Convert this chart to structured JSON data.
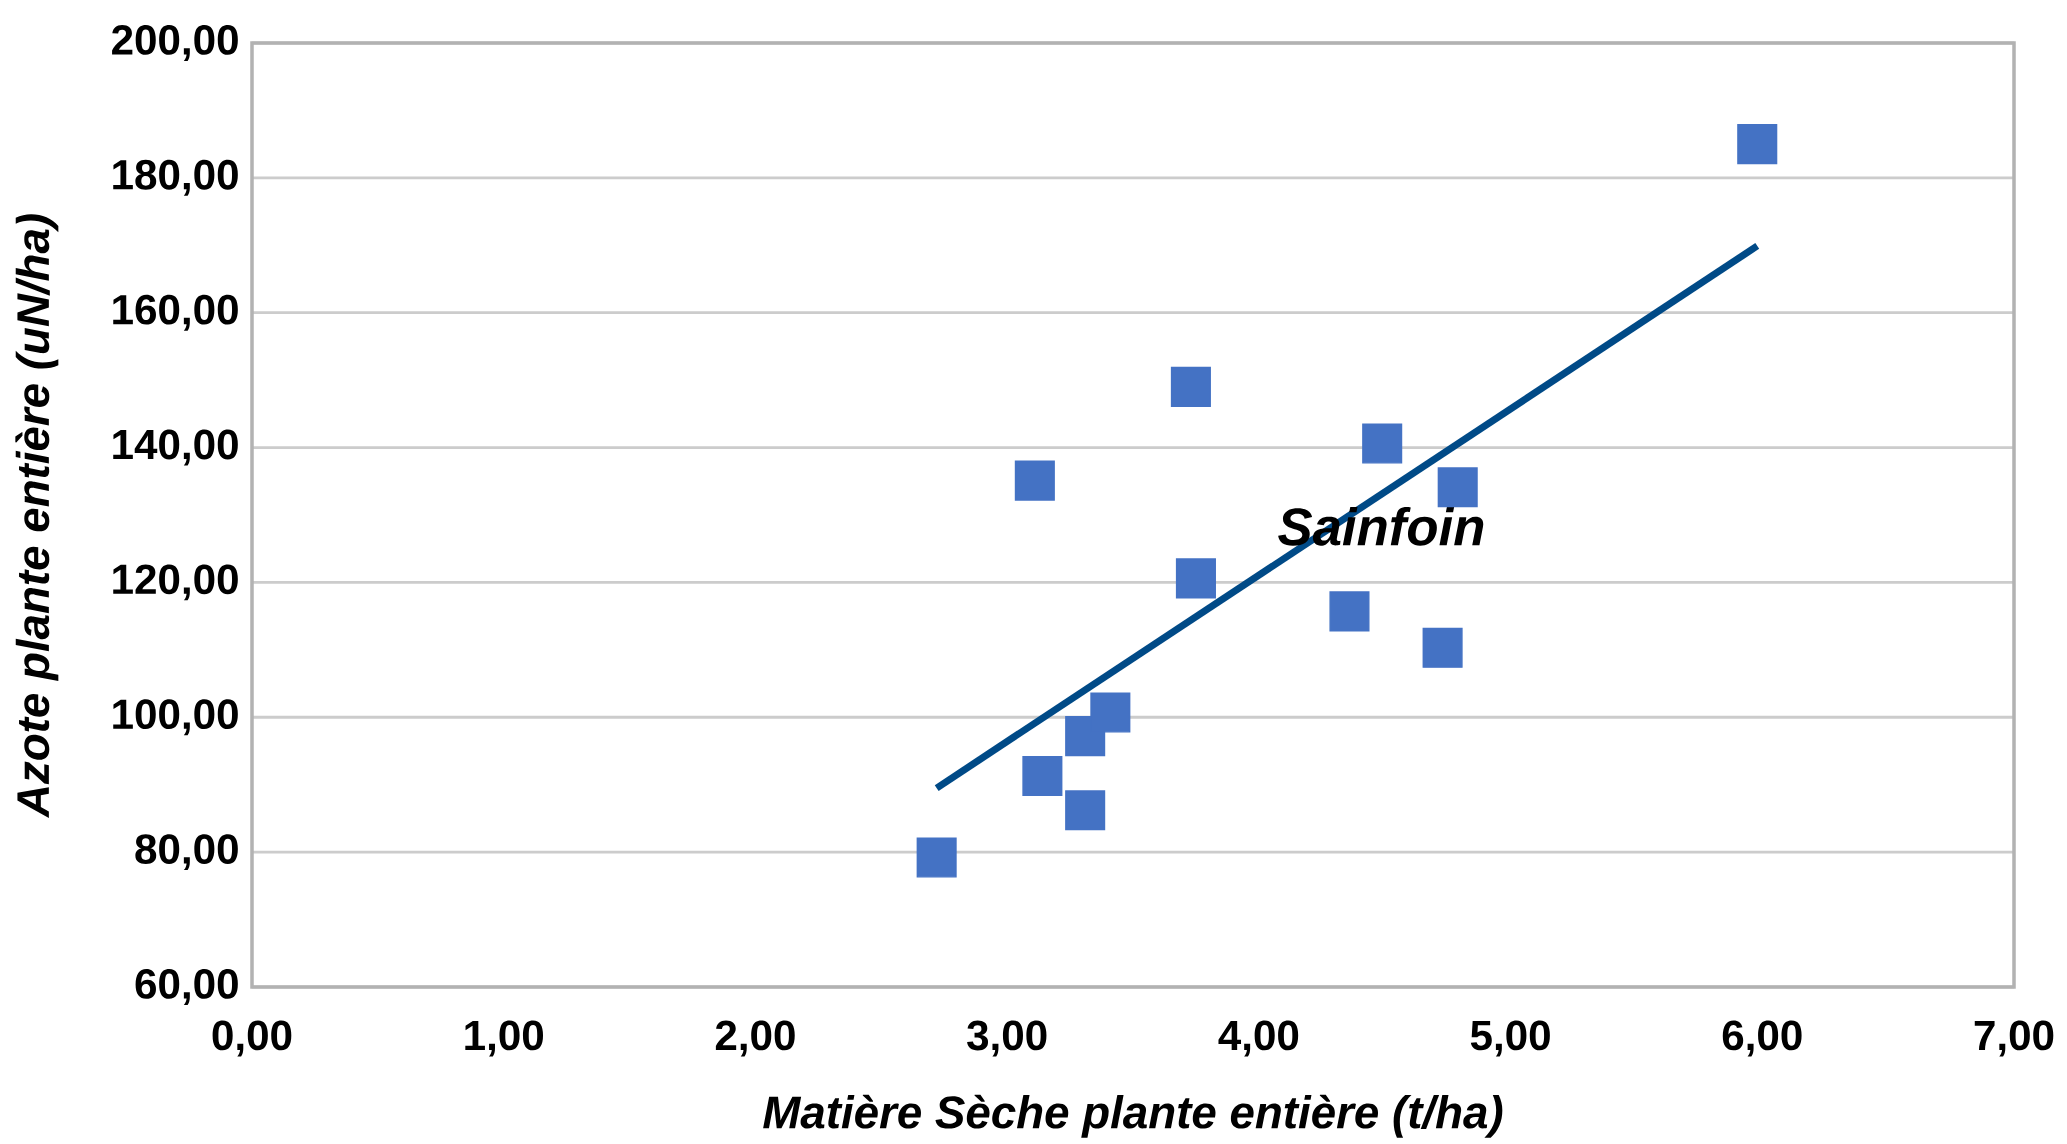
{
  "chart_data": {
    "type": "scatter",
    "xlabel": "Matière Sèche plante entière (t/ha)",
    "ylabel": "Azote plante entière (uN/ha)",
    "xlim": [
      0,
      7
    ],
    "ylim": [
      60,
      200
    ],
    "xticks": [
      {
        "value": 0,
        "label": "0,00"
      },
      {
        "value": 1,
        "label": "1,00"
      },
      {
        "value": 2,
        "label": "2,00"
      },
      {
        "value": 3,
        "label": "3,00"
      },
      {
        "value": 4,
        "label": "4,00"
      },
      {
        "value": 5,
        "label": "5,00"
      },
      {
        "value": 6,
        "label": "6,00"
      },
      {
        "value": 7,
        "label": "7,00"
      }
    ],
    "yticks": [
      {
        "value": 60,
        "label": "60,00"
      },
      {
        "value": 80,
        "label": "80,00"
      },
      {
        "value": 100,
        "label": "100,00"
      },
      {
        "value": 120,
        "label": "120,00"
      },
      {
        "value": 140,
        "label": "140,00"
      },
      {
        "value": 160,
        "label": "160,00"
      },
      {
        "value": 180,
        "label": "180,00"
      },
      {
        "value": 200,
        "label": "200,00"
      }
    ],
    "grid": "y",
    "series": [
      {
        "marker": "square",
        "color": "#4472c4",
        "x": [
          2.72,
          3.14,
          3.31,
          3.31,
          3.41,
          3.11,
          3.73,
          3.75,
          4.36,
          4.49,
          4.79,
          4.73,
          5.98
        ],
        "values": [
          79.2,
          91.3,
          86.2,
          97.2,
          100.7,
          135.1,
          149.0,
          120.6,
          115.7,
          140.6,
          134.1,
          110.3,
          185.0
        ]
      },
      {
        "type": "line",
        "marker": "none",
        "color": "#004a87",
        "x": [
          2.72,
          5.98
        ],
        "values": [
          89.5,
          169.9
        ]
      }
    ],
    "annotations": [
      "*Sainfoin*"
    ]
  }
}
